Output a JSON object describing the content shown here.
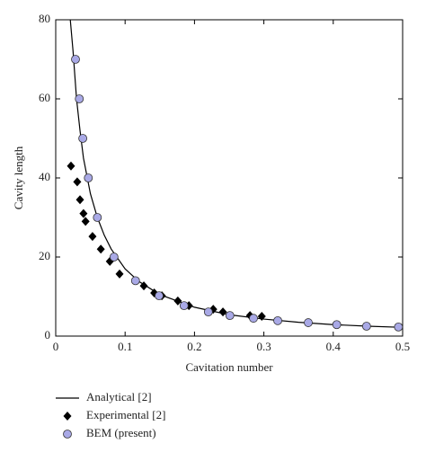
{
  "chart_data": {
    "type": "scatter",
    "x_label": "Cavitation number",
    "y_label": "Cavity length",
    "xlim": [
      0,
      0.5
    ],
    "ylim": [
      0,
      80
    ],
    "xticks": [
      0,
      0.1,
      0.2,
      0.3,
      0.4,
      0.5
    ],
    "yticks": [
      0,
      20,
      40,
      60,
      80
    ],
    "series": [
      {
        "name": "Analytical [2]",
        "marker": "line",
        "color": "#000000",
        "x": [
          0.021,
          0.025,
          0.03,
          0.035,
          0.04,
          0.05,
          0.06,
          0.07,
          0.08,
          0.1,
          0.12,
          0.15,
          0.2,
          0.25,
          0.3,
          0.35,
          0.4,
          0.45,
          0.5
        ],
        "values": [
          80,
          72,
          60,
          52,
          45,
          36,
          30,
          25.5,
          22,
          17,
          13.8,
          10.5,
          7.3,
          5.4,
          4.3,
          3.5,
          2.9,
          2.5,
          2.2
        ]
      },
      {
        "name": "Experimental [2]",
        "marker": "diamond",
        "color": "#000000",
        "x": [
          0.022,
          0.031,
          0.035,
          0.04,
          0.043,
          0.053,
          0.065,
          0.078,
          0.092,
          0.127,
          0.142,
          0.153,
          0.176,
          0.192,
          0.227,
          0.241,
          0.28,
          0.297
        ],
        "values": [
          43,
          39,
          34.5,
          31,
          29,
          25.2,
          22,
          18.9,
          15.7,
          12.7,
          10.9,
          10.2,
          8.9,
          7.7,
          6.8,
          6.1,
          5.2,
          5.0
        ]
      },
      {
        "name": "BEM (present)",
        "marker": "circle",
        "color": "#a9a9e6",
        "x": [
          0.0285,
          0.034,
          0.039,
          0.047,
          0.06,
          0.084,
          0.115,
          0.149,
          0.185,
          0.22,
          0.251,
          0.285,
          0.32,
          0.364,
          0.405,
          0.448,
          0.494
        ],
        "values": [
          70,
          60,
          50,
          40,
          30,
          20,
          14,
          10.2,
          7.7,
          6.1,
          5.2,
          4.5,
          3.9,
          3.4,
          2.9,
          2.5,
          2.3
        ]
      }
    ]
  }
}
